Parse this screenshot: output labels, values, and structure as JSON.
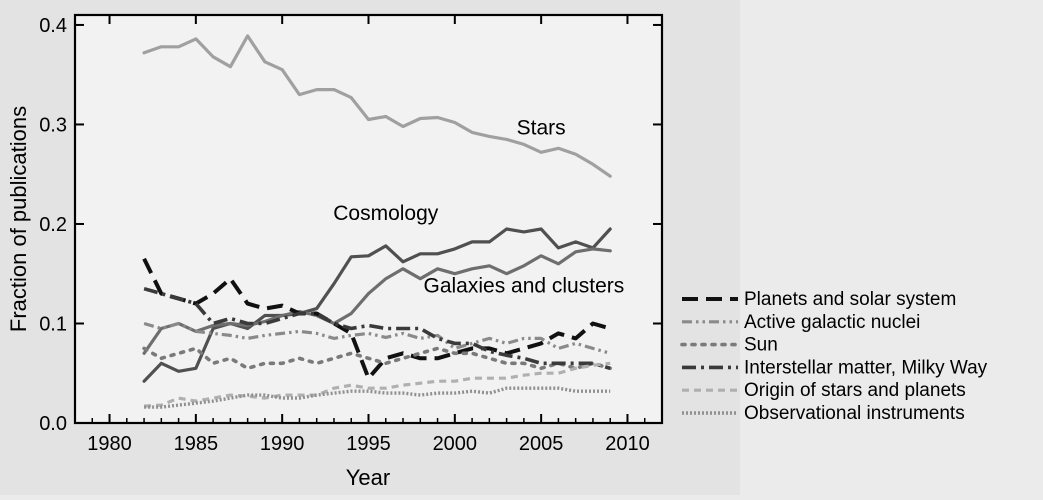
{
  "chart_data": {
    "type": "line",
    "title": "",
    "xlabel": "Year",
    "ylabel": "Fraction of publications",
    "xlim": [
      1978,
      2012
    ],
    "ylim": [
      0,
      0.41
    ],
    "xticks": [
      1980,
      1985,
      1990,
      1995,
      2000,
      2005,
      2010
    ],
    "yticks": [
      0.0,
      0.1,
      0.2,
      0.3,
      0.4
    ],
    "xtick_labels": [
      "1980",
      "1985",
      "1990",
      "1995",
      "2000",
      "2005",
      "2010"
    ],
    "ytick_labels": [
      "0.0",
      "0.1",
      "0.2",
      "0.3",
      "0.4"
    ],
    "grid": false,
    "legend_position": "right",
    "x": [
      1982,
      1983,
      1984,
      1985,
      1986,
      1987,
      1988,
      1989,
      1990,
      1991,
      1992,
      1993,
      1994,
      1995,
      1996,
      1997,
      1998,
      1999,
      2000,
      2001,
      2002,
      2003,
      2004,
      2005,
      2006,
      2007,
      2008,
      2009
    ],
    "series": [
      {
        "name": "Stars",
        "label_on_plot": true,
        "color": "#a0a0a0",
        "dash": "solid",
        "values": [
          0.372,
          0.378,
          0.378,
          0.386,
          0.368,
          0.358,
          0.389,
          0.363,
          0.355,
          0.33,
          0.335,
          0.335,
          0.327,
          0.305,
          0.308,
          0.298,
          0.306,
          0.307,
          0.302,
          0.292,
          0.288,
          0.285,
          0.28,
          0.272,
          0.276,
          0.27,
          0.26,
          0.248
        ]
      },
      {
        "name": "Cosmology",
        "label_on_plot": true,
        "color": "#505050",
        "dash": "solid",
        "values": [
          0.042,
          0.06,
          0.052,
          0.055,
          0.095,
          0.1,
          0.095,
          0.108,
          0.108,
          0.11,
          0.115,
          0.14,
          0.167,
          0.168,
          0.178,
          0.162,
          0.17,
          0.17,
          0.175,
          0.182,
          0.182,
          0.195,
          0.192,
          0.195,
          0.176,
          0.182,
          0.176,
          0.195
        ]
      },
      {
        "name": "Galaxies and clusters",
        "label_on_plot": true,
        "color": "#6e6e6e",
        "dash": "solid",
        "values": [
          0.07,
          0.095,
          0.1,
          0.092,
          0.098,
          0.1,
          0.098,
          0.102,
          0.108,
          0.112,
          0.108,
          0.1,
          0.11,
          0.13,
          0.145,
          0.155,
          0.145,
          0.155,
          0.15,
          0.155,
          0.158,
          0.15,
          0.158,
          0.168,
          0.16,
          0.172,
          0.175,
          0.173
        ]
      },
      {
        "name": "Planets and solar system",
        "label_on_plot": false,
        "color": "#111111",
        "dash": "long-dash",
        "values": [
          0.165,
          0.13,
          0.125,
          0.12,
          0.13,
          0.145,
          0.12,
          0.115,
          0.118,
          0.11,
          0.11,
          0.1,
          0.09,
          0.045,
          0.065,
          0.07,
          0.065,
          0.065,
          0.07,
          0.075,
          0.075,
          0.07,
          0.075,
          0.08,
          0.09,
          0.085,
          0.1,
          0.095
        ]
      },
      {
        "name": "Active galactic nuclei",
        "label_on_plot": false,
        "color": "#8a8a8a",
        "dash": "dash-dot-dot",
        "values": [
          0.1,
          0.095,
          0.1,
          0.092,
          0.09,
          0.088,
          0.085,
          0.088,
          0.09,
          0.092,
          0.09,
          0.085,
          0.088,
          0.09,
          0.086,
          0.09,
          0.085,
          0.088,
          0.075,
          0.08,
          0.085,
          0.08,
          0.085,
          0.085,
          0.075,
          0.08,
          0.075,
          0.07
        ]
      },
      {
        "name": "Sun",
        "label_on_plot": false,
        "color": "#7a7a7a",
        "dash": "dotted",
        "values": [
          0.075,
          0.065,
          0.07,
          0.075,
          0.06,
          0.065,
          0.055,
          0.06,
          0.06,
          0.065,
          0.06,
          0.065,
          0.07,
          0.065,
          0.06,
          0.065,
          0.07,
          0.075,
          0.07,
          0.07,
          0.065,
          0.06,
          0.06,
          0.055,
          0.06,
          0.055,
          0.06,
          0.055
        ]
      },
      {
        "name": "Interstellar matter, Milky Way",
        "label_on_plot": false,
        "color": "#3a3a3a",
        "dash": "dash-dot",
        "values": [
          0.135,
          0.13,
          0.125,
          0.12,
          0.1,
          0.105,
          0.1,
          0.1,
          0.105,
          0.11,
          0.11,
          0.1,
          0.095,
          0.098,
          0.095,
          0.095,
          0.095,
          0.085,
          0.08,
          0.08,
          0.072,
          0.068,
          0.065,
          0.06,
          0.06,
          0.06,
          0.06,
          0.055
        ]
      },
      {
        "name": "Origin of stars and planets",
        "label_on_plot": false,
        "color": "#b0b0b0",
        "dash": "short-dash",
        "values": [
          0.017,
          0.018,
          0.025,
          0.022,
          0.025,
          0.028,
          0.027,
          0.025,
          0.028,
          0.028,
          0.028,
          0.035,
          0.038,
          0.035,
          0.035,
          0.038,
          0.04,
          0.042,
          0.042,
          0.045,
          0.045,
          0.045,
          0.048,
          0.05,
          0.05,
          0.055,
          0.058,
          0.06
        ]
      },
      {
        "name": "Observational instruments",
        "label_on_plot": false,
        "color": "#909090",
        "dash": "fine-dotted",
        "values": [
          0.016,
          0.016,
          0.018,
          0.02,
          0.022,
          0.025,
          0.028,
          0.028,
          0.025,
          0.025,
          0.028,
          0.03,
          0.032,
          0.032,
          0.03,
          0.03,
          0.028,
          0.03,
          0.03,
          0.032,
          0.03,
          0.035,
          0.035,
          0.035,
          0.035,
          0.032,
          0.032,
          0.032
        ]
      }
    ],
    "plot_labels": [
      {
        "series": "Stars",
        "text": "Stars",
        "x": 2005,
        "y": 0.29
      },
      {
        "series": "Cosmology",
        "text": "Cosmology",
        "x": 1996,
        "y": 0.204
      },
      {
        "series": "Galaxies and clusters",
        "text": "Galaxies and clusters",
        "x": 2004,
        "y": 0.131
      }
    ]
  }
}
